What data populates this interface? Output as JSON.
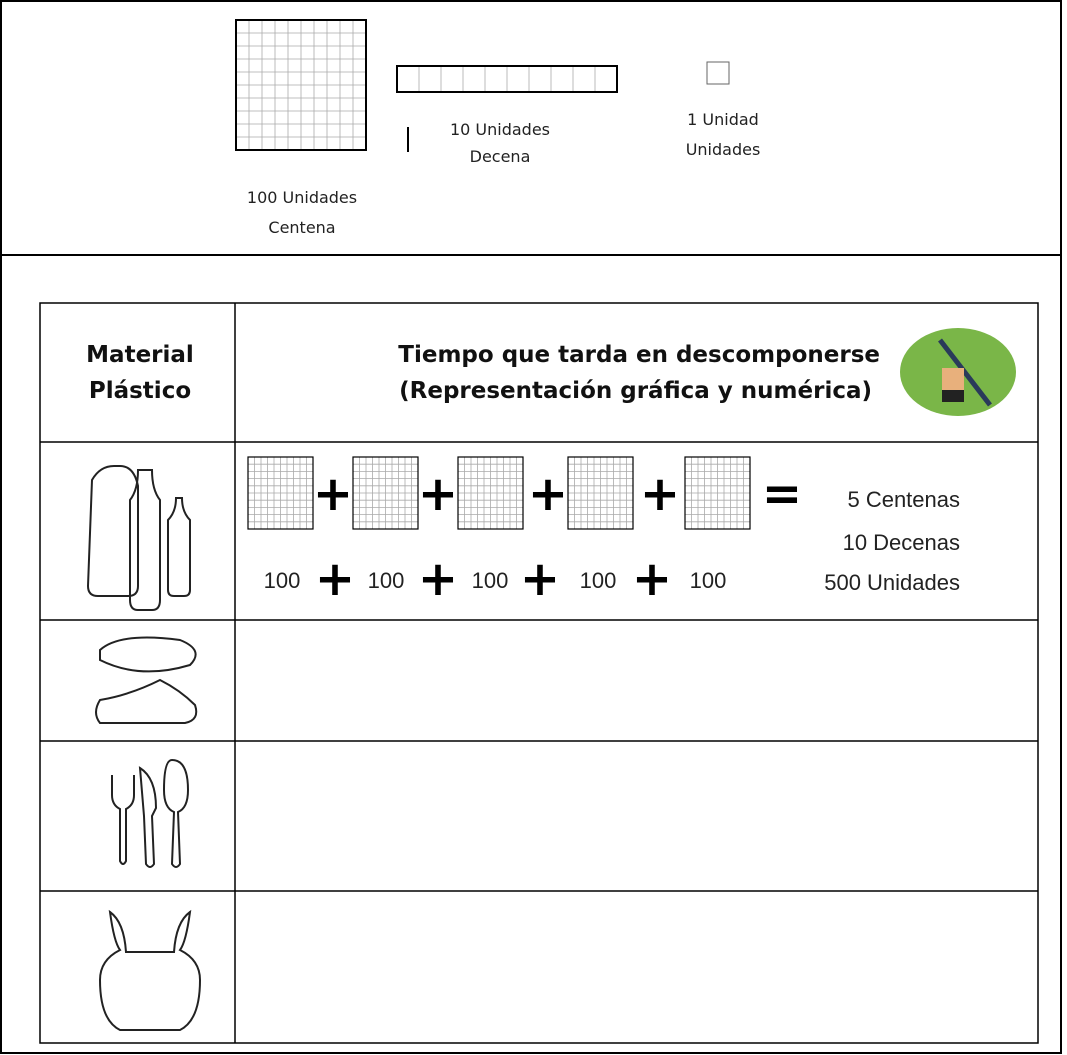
{
  "blocks": {
    "hundred": [
      "100 Unidades",
      "Centena"
    ],
    "ten": [
      "10 Unidades",
      "Decena"
    ],
    "one": [
      "1 Unidad",
      "Unidades"
    ]
  },
  "table": {
    "header": {
      "material": [
        "Material",
        "Plástico"
      ],
      "time": [
        "Tiempo que tarda en descomponerse",
        "(Representación gráfica y numérica)"
      ]
    },
    "example": {
      "block_operators": [
        "+",
        "+",
        "+",
        "+",
        "="
      ],
      "terms": [
        "100",
        "100",
        "100",
        "100",
        "100"
      ],
      "term_operators": [
        "+",
        "+",
        "+",
        "+"
      ],
      "result": [
        "5 Centenas",
        "10 Decenas",
        "500 Unidades"
      ]
    }
  }
}
